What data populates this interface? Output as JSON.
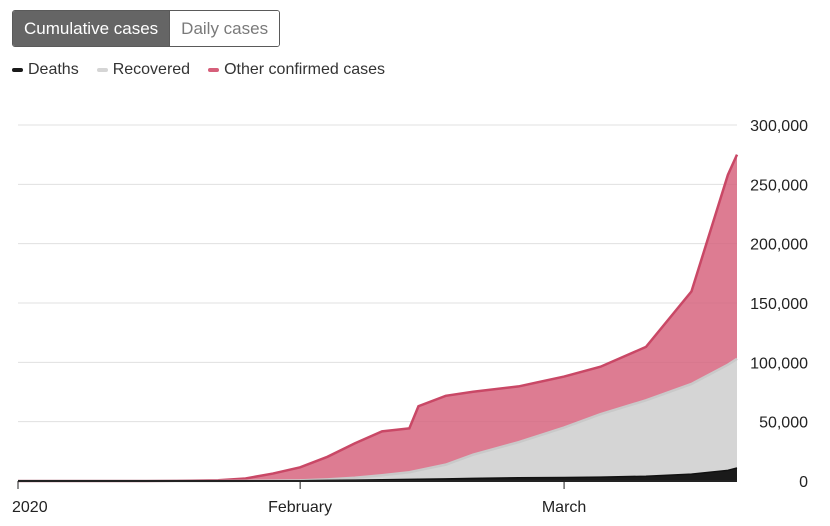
{
  "toggle": {
    "active_label": "Cumulative cases",
    "inactive_label": "Daily cases"
  },
  "legend": [
    {
      "label": "Deaths",
      "color": "#1a1a1a"
    },
    {
      "label": "Recovered",
      "color": "#d5d5d5"
    },
    {
      "label": "Other confirmed cases",
      "color": "#d65f7a"
    }
  ],
  "chart_data": {
    "type": "area",
    "stacked": true,
    "x_unit": "date",
    "x": [
      "2020-01-01",
      "2020-01-10",
      "2020-01-15",
      "2020-01-20",
      "2020-01-23",
      "2020-01-26",
      "2020-01-29",
      "2020-02-01",
      "2020-02-04",
      "2020-02-07",
      "2020-02-10",
      "2020-02-13",
      "2020-02-14",
      "2020-02-17",
      "2020-02-20",
      "2020-02-25",
      "2020-03-01",
      "2020-03-05",
      "2020-03-10",
      "2020-03-15",
      "2020-03-19",
      "2020-03-20"
    ],
    "series": [
      {
        "name": "Deaths",
        "color": "#1a1a1a",
        "values": [
          0,
          0,
          0,
          0,
          17,
          80,
          170,
          260,
          490,
          720,
          1000,
          1370,
          1500,
          1800,
          2200,
          2700,
          3000,
          3300,
          4000,
          5800,
          9000,
          11000
        ]
      },
      {
        "name": "Recovered",
        "color": "#d5d5d5",
        "values": [
          0,
          0,
          0,
          0,
          30,
          60,
          110,
          280,
          900,
          2000,
          3800,
          6000,
          7500,
          12000,
          20000,
          30000,
          42000,
          53000,
          64000,
          76000,
          89000,
          92000
        ]
      },
      {
        "name": "Other confirmed cases",
        "color": "#d65f7a",
        "values": [
          0,
          0,
          0,
          300,
          600,
          2000,
          6000,
          11000,
          19000,
          29000,
          37000,
          37000,
          54000,
          58000,
          53000,
          47000,
          43000,
          40000,
          45000,
          78000,
          160000,
          172000
        ]
      }
    ],
    "x_ticks": [
      {
        "label": "2020",
        "date": "2020-01-01"
      },
      {
        "label": "February",
        "date": "2020-02-01"
      },
      {
        "label": "March",
        "date": "2020-03-01"
      }
    ],
    "y_ticks": [
      "0",
      "50,000",
      "100,000",
      "150,000",
      "200,000",
      "250,000",
      "300,000"
    ],
    "ylim": [
      0,
      300000
    ],
    "grid": true
  }
}
